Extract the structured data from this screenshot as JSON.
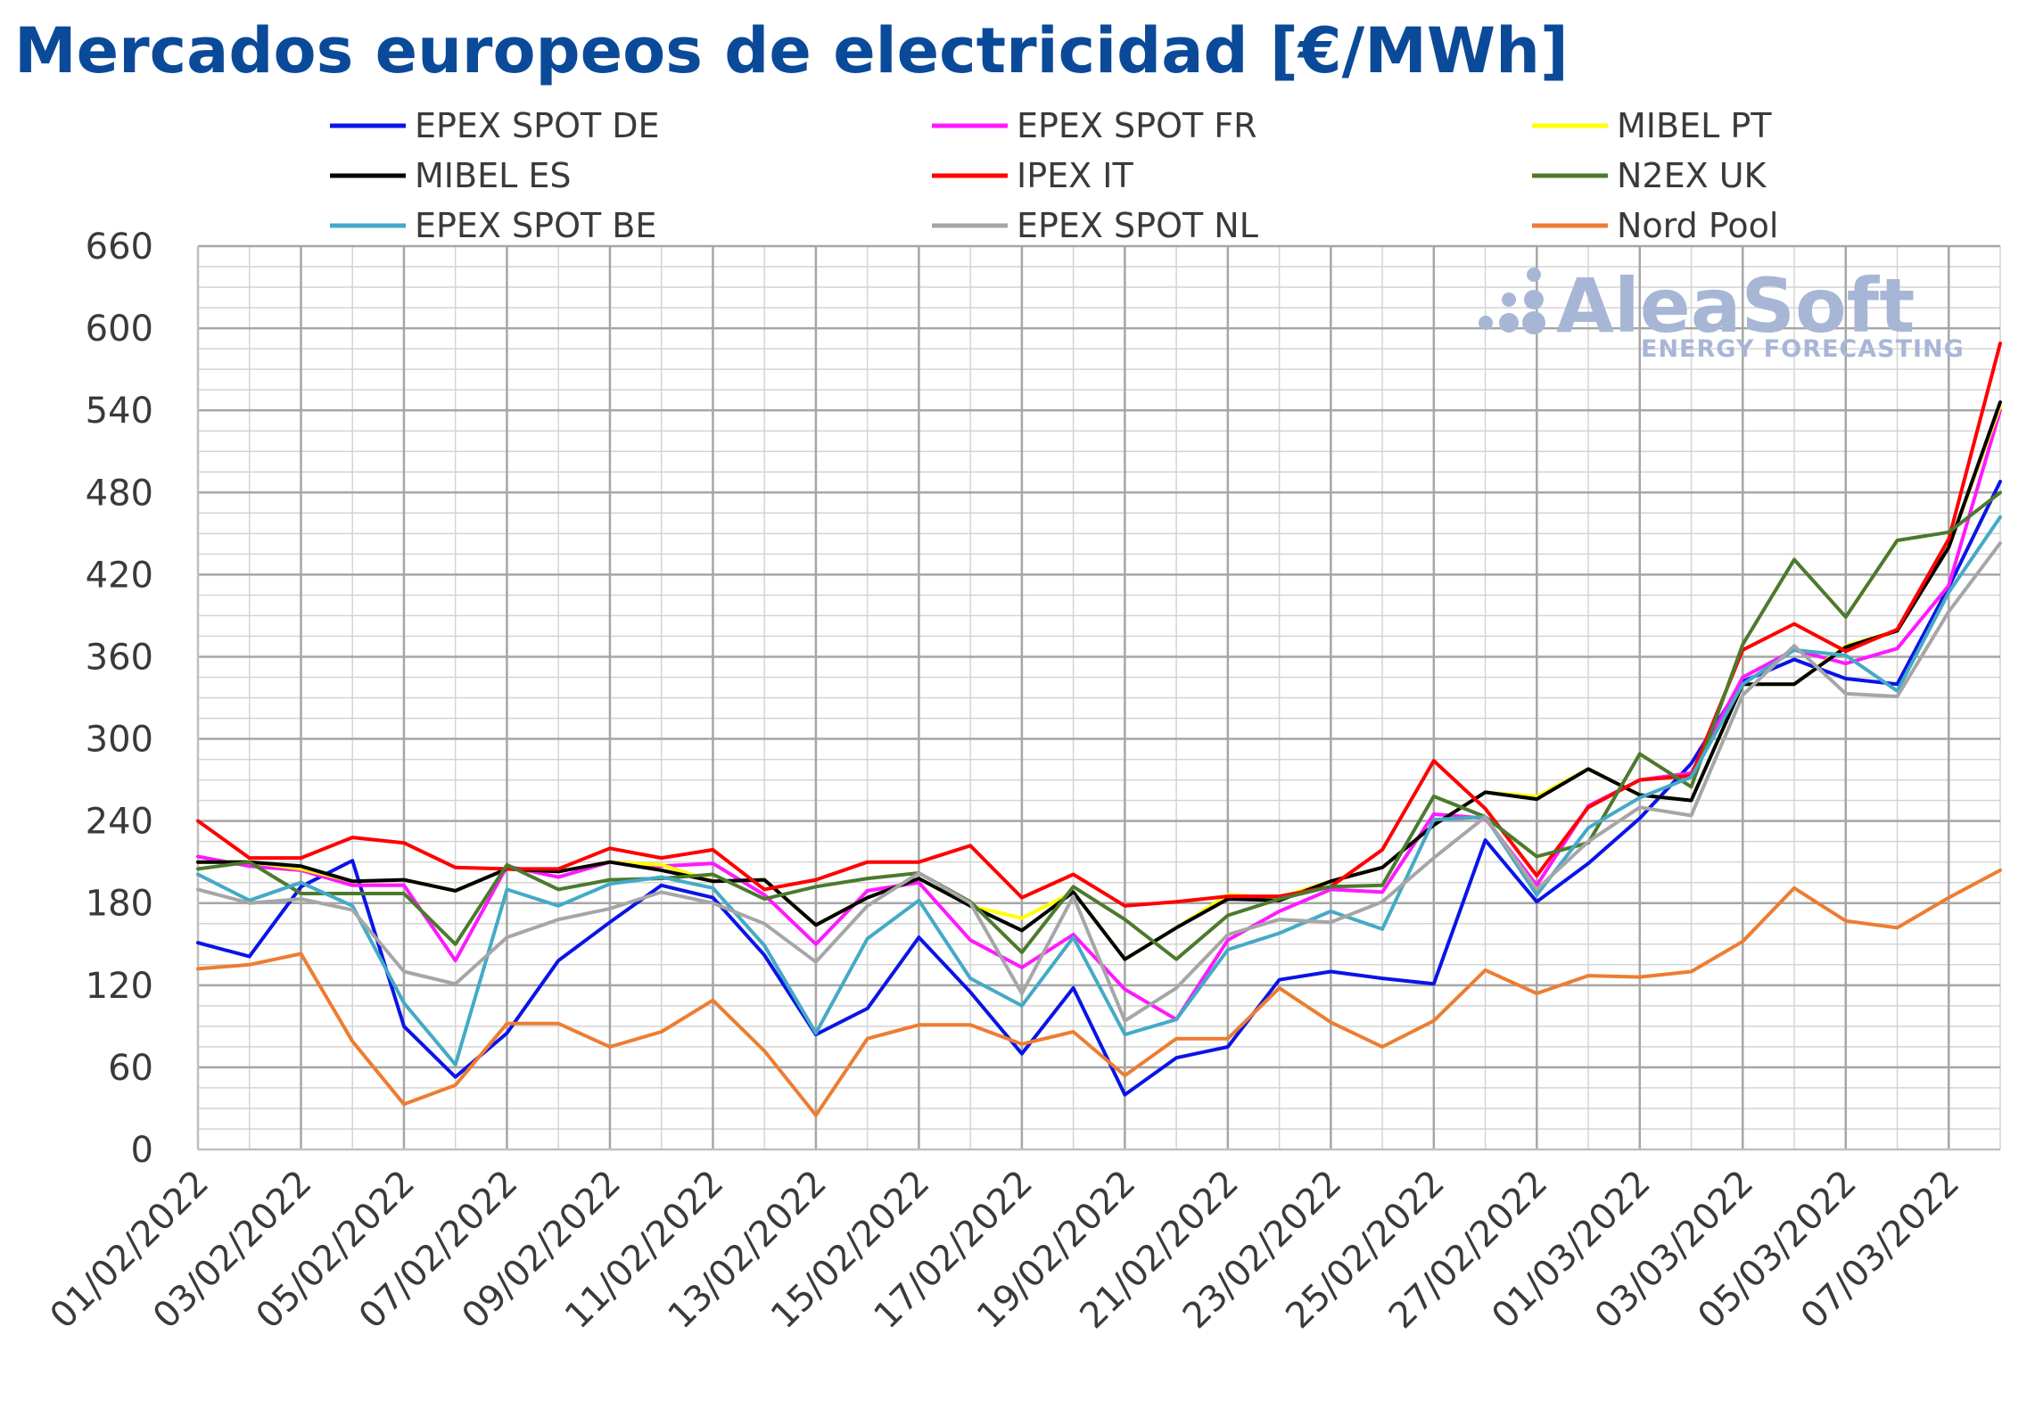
{
  "chart_data": {
    "type": "line",
    "title": "Mercados europeos de electricidad [€/MWh]",
    "xlabel": "",
    "ylabel": "",
    "ylim": [
      0,
      660
    ],
    "yticks": [
      0,
      60,
      120,
      180,
      240,
      300,
      360,
      420,
      480,
      540,
      600,
      660
    ],
    "grid": true,
    "legend_position": "top",
    "x": [
      "01/02/2022",
      "02/02/2022",
      "03/02/2022",
      "04/02/2022",
      "05/02/2022",
      "06/02/2022",
      "07/02/2022",
      "08/02/2022",
      "09/02/2022",
      "10/02/2022",
      "11/02/2022",
      "12/02/2022",
      "13/02/2022",
      "14/02/2022",
      "15/02/2022",
      "16/02/2022",
      "17/02/2022",
      "18/02/2022",
      "19/02/2022",
      "20/02/2022",
      "21/02/2022",
      "22/02/2022",
      "23/02/2022",
      "24/02/2022",
      "25/02/2022",
      "26/02/2022",
      "27/02/2022",
      "28/02/2022",
      "01/03/2022",
      "02/03/2022",
      "03/03/2022",
      "04/03/2022",
      "05/03/2022",
      "06/03/2022",
      "07/03/2022",
      "08/03/2022"
    ],
    "x_tick_labels": [
      "01/02/2022",
      "03/02/2022",
      "05/02/2022",
      "07/02/2022",
      "09/02/2022",
      "11/02/2022",
      "13/02/2022",
      "15/02/2022",
      "17/02/2022",
      "19/02/2022",
      "21/02/2022",
      "23/02/2022",
      "25/02/2022",
      "27/02/2022",
      "01/03/2022",
      "03/03/2022",
      "05/03/2022",
      "07/03/2022"
    ],
    "series": [
      {
        "name": "EPEX SPOT DE",
        "color": "#0a14e6",
        "values": [
          151,
          141,
          192,
          211,
          90,
          53,
          85,
          138,
          166,
          193,
          184,
          142,
          84,
          103,
          155,
          115,
          70,
          118,
          40,
          67,
          75,
          124,
          130,
          125,
          121,
          226,
          181,
          209,
          242,
          282,
          342,
          358,
          344,
          340,
          411,
          488
        ]
      },
      {
        "name": "EPEX SPOT FR",
        "color": "#ff19ff",
        "values": [
          214,
          207,
          204,
          193,
          193,
          138,
          207,
          199,
          210,
          207,
          209,
          186,
          150,
          189,
          195,
          153,
          133,
          157,
          117,
          95,
          153,
          174,
          190,
          188,
          245,
          242,
          193,
          251,
          270,
          275,
          345,
          365,
          355,
          366,
          412,
          540
        ]
      },
      {
        "name": "MIBEL PT",
        "color": "#ffff00",
        "values": [
          210,
          210,
          205,
          196,
          197,
          189,
          205,
          203,
          210,
          208,
          196,
          197,
          164,
          184,
          198,
          178,
          169,
          188,
          139,
          162,
          186,
          184,
          196,
          206,
          237,
          261,
          258,
          278,
          259,
          255,
          340,
          340,
          368,
          379,
          440,
          543
        ]
      },
      {
        "name": "MIBEL ES",
        "color": "#000000",
        "values": [
          210,
          210,
          207,
          196,
          197,
          189,
          205,
          203,
          210,
          204,
          196,
          197,
          164,
          184,
          198,
          178,
          160,
          188,
          139,
          162,
          183,
          182,
          196,
          206,
          237,
          261,
          256,
          278,
          259,
          255,
          340,
          340,
          367,
          379,
          440,
          546
        ]
      },
      {
        "name": "IPEX IT",
        "color": "#ff0000",
        "values": [
          240,
          213,
          213,
          228,
          224,
          206,
          205,
          205,
          220,
          213,
          219,
          190,
          197,
          210,
          210,
          222,
          184,
          201,
          178,
          181,
          185,
          185,
          192,
          219,
          284,
          249,
          200,
          250,
          270,
          273,
          365,
          384,
          364,
          380,
          446,
          589
        ]
      },
      {
        "name": "N2EX UK",
        "color": "#4c7a2c",
        "values": [
          205,
          210,
          187,
          187,
          187,
          150,
          208,
          190,
          197,
          198,
          201,
          183,
          192,
          198,
          202,
          181,
          144,
          192,
          168,
          139,
          171,
          183,
          192,
          193,
          258,
          243,
          214,
          224,
          289,
          265,
          369,
          431,
          389,
          445,
          451,
          480
        ]
      },
      {
        "name": "EPEX SPOT BE",
        "color": "#44aac6",
        "values": [
          201,
          182,
          195,
          178,
          107,
          62,
          190,
          178,
          194,
          199,
          191,
          149,
          85,
          154,
          182,
          125,
          105,
          155,
          84,
          95,
          146,
          158,
          174,
          161,
          241,
          243,
          186,
          235,
          257,
          272,
          340,
          365,
          361,
          335,
          407,
          462
        ]
      },
      {
        "name": "EPEX SPOT NL",
        "color": "#a6a6a6",
        "values": [
          190,
          180,
          183,
          175,
          130,
          121,
          155,
          168,
          176,
          188,
          180,
          165,
          137,
          178,
          202,
          180,
          114,
          185,
          94,
          118,
          157,
          168,
          166,
          181,
          213,
          243,
          190,
          225,
          250,
          244,
          332,
          368,
          333,
          331,
          393,
          443
        ]
      },
      {
        "name": "Nord Pool",
        "color": "#ed7d31",
        "values": [
          132,
          135,
          143,
          79,
          33,
          47,
          92,
          92,
          75,
          86,
          109,
          72,
          25,
          81,
          91,
          91,
          77,
          86,
          54,
          81,
          81,
          118,
          93,
          75,
          94,
          131,
          114,
          127,
          126,
          130,
          152,
          191,
          167,
          162,
          184,
          204
        ]
      }
    ]
  },
  "watermark": {
    "brand": "AleaSoft",
    "tagline": "ENERGY FORECASTING"
  }
}
